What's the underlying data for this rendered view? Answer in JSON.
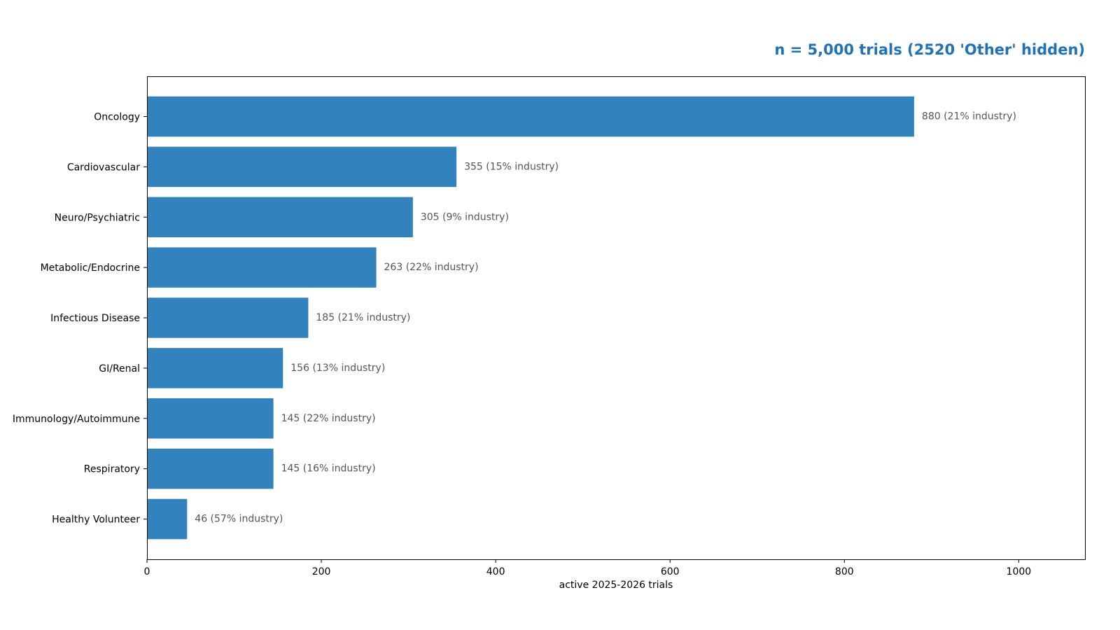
{
  "chart_data": {
    "type": "bar",
    "orientation": "horizontal",
    "title": "n = 5,000 trials  (2520 'Other' hidden)",
    "xlabel": "active 2025-2026 trials",
    "ylabel": "",
    "xlim": [
      0,
      1076
    ],
    "xticks": [
      0,
      200,
      400,
      600,
      800,
      1000
    ],
    "grid": false,
    "categories": [
      "Oncology",
      "Cardiovascular",
      "Neuro/Psychiatric",
      "Metabolic/Endocrine",
      "Infectious Disease",
      "GI/Renal",
      "Immunology/Autoimmune",
      "Respiratory",
      "Healthy Volunteer"
    ],
    "values": [
      880,
      355,
      305,
      263,
      185,
      156,
      145,
      145,
      46
    ],
    "data_labels": [
      "880  (21% industry)",
      "355  (15% industry)",
      "305  (9% industry)",
      "263  (22% industry)",
      "185  (21% industry)",
      "156  (13% industry)",
      "145  (22% industry)",
      "145  (16% industry)",
      "46  (57% industry)"
    ],
    "colors": {
      "bar": "#3182bd",
      "title": "#2171b5",
      "data_label": "#555555"
    }
  }
}
